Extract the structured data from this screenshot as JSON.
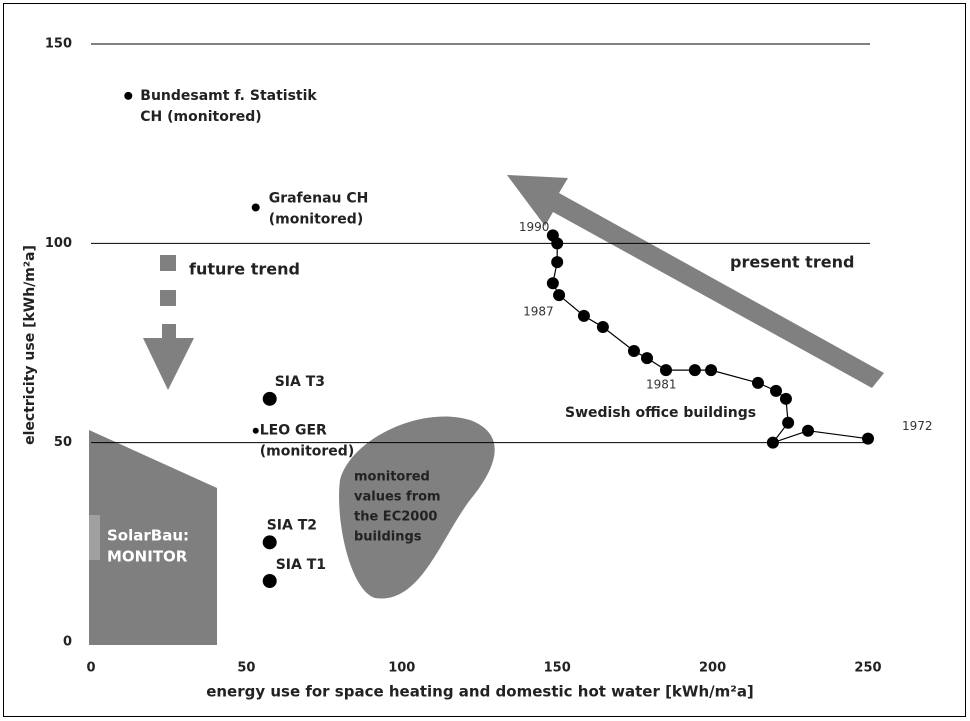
{
  "chart_data": {
    "type": "scatter",
    "xlabel": "energy use for space heating and domestic hot water [kWh/m²a]",
    "ylabel": "electricity use [kWh/m²a]",
    "xlim": [
      0,
      250
    ],
    "ylim": [
      0,
      150
    ],
    "xticks": [
      0,
      50,
      100,
      150,
      200,
      250
    ],
    "yticks": [
      0,
      50,
      100,
      150
    ],
    "grid": true,
    "points": [
      {
        "label": [
          "Bundesamt f. Statistik",
          "CH (monitored)"
        ],
        "x": 12,
        "y": 137
      },
      {
        "label": [
          "Grafenau CH",
          "(monitored)"
        ],
        "x": 53,
        "y": 109
      },
      {
        "label": [
          "SIA T3"
        ],
        "x": 57.5,
        "y": 61
      },
      {
        "label": [
          "LEO GER",
          "(monitored)"
        ],
        "x": 53,
        "y": 53
      },
      {
        "label": [
          "SIA T2"
        ],
        "x": 57.5,
        "y": 25
      },
      {
        "label": [
          "SIA T1"
        ],
        "x": 57.5,
        "y": 15.3
      }
    ],
    "series": [
      {
        "name": "Swedish office buildings",
        "color": "#000000",
        "x": [
          250,
          230.7,
          219.4,
          224.3,
          223.6,
          220.4,
          214.6,
          199.5,
          194.3,
          185,
          178.9,
          174.7,
          164.7,
          158.6,
          150.6,
          148.6,
          150,
          150,
          148.6
        ],
        "y": [
          51,
          53,
          50,
          55,
          61,
          63,
          65,
          68.2,
          68.2,
          68.2,
          71.2,
          73,
          79,
          81.8,
          87,
          90,
          95.3,
          100,
          102
        ]
      }
    ],
    "year_labels": [
      {
        "label": "1990",
        "x": 148.6,
        "y": 102
      },
      {
        "label": "1987",
        "x": 150.6,
        "y": 87
      },
      {
        "label": "1981",
        "x": 185,
        "y": 68.2
      },
      {
        "label": "1972",
        "x": 250,
        "y": 51
      }
    ],
    "annotations": [
      "future trend",
      "present trend",
      [
        "monitored",
        "values from",
        "the EC2000",
        "buildings"
      ],
      [
        "SolarBau:",
        "MONITOR"
      ]
    ]
  }
}
